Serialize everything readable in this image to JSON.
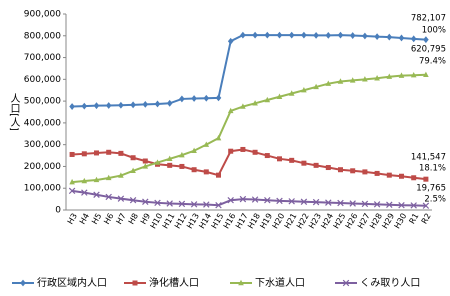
{
  "chart_data": {
    "type": "line",
    "y_label": "人口[人]",
    "categories": [
      "H3",
      "H4",
      "H5",
      "H6",
      "H7",
      "H8",
      "H9",
      "H10",
      "H11",
      "H12",
      "H13",
      "H14",
      "H15",
      "H16",
      "H17",
      "H18",
      "H19",
      "H20",
      "H21",
      "H22",
      "H23",
      "H24",
      "H25",
      "H26",
      "H27",
      "H28",
      "H29",
      "H30",
      "R1",
      "R2"
    ],
    "ylim": [
      0,
      900000
    ],
    "yticks": [
      0,
      {
        "value": 100000,
        "label": "100,000"
      },
      {
        "value": 200000,
        "label": "200,000"
      },
      {
        "value": 300000,
        "label": "300,000"
      },
      {
        "value": 400000,
        "label": "400,000"
      },
      {
        "value": 500000,
        "label": "500,000"
      },
      {
        "value": 600000,
        "label": "600,000"
      },
      {
        "value": 700000,
        "label": "700,000"
      },
      {
        "value": 800000,
        "label": "800,000"
      },
      {
        "value": 900000,
        "label": "900,000"
      }
    ],
    "legend": "bottom",
    "series": [
      {
        "name": "行政区域内人口",
        "color": "#4a7ebb",
        "marker": "diamond",
        "values": [
          475000,
          477000,
          479000,
          480000,
          481000,
          483000,
          485000,
          487000,
          490000,
          510000,
          512000,
          513000,
          515000,
          775000,
          803000,
          803000,
          803000,
          803000,
          803000,
          803000,
          802000,
          802000,
          803000,
          801000,
          799000,
          796000,
          794000,
          790000,
          786000,
          782107
        ],
        "end_label": [
          "782,107",
          "100%"
        ]
      },
      {
        "name": "浄化槽人口",
        "color": "#be4b48",
        "marker": "square",
        "values": [
          255000,
          258000,
          262000,
          265000,
          260000,
          240000,
          225000,
          210000,
          205000,
          200000,
          185000,
          175000,
          160000,
          270000,
          278000,
          265000,
          250000,
          235000,
          228000,
          215000,
          205000,
          195000,
          185000,
          180000,
          175000,
          168000,
          160000,
          155000,
          148000,
          141547
        ],
        "end_label": [
          "141,547",
          "18.1%"
        ]
      },
      {
        "name": "下水道人口",
        "color": "#98b954",
        "marker": "triangle",
        "values": [
          128000,
          133000,
          138000,
          147000,
          158000,
          180000,
          200000,
          218000,
          235000,
          252000,
          272000,
          300000,
          330000,
          455000,
          475000,
          490000,
          505000,
          520000,
          535000,
          550000,
          565000,
          580000,
          590000,
          595000,
          600000,
          605000,
          612000,
          617000,
          619000,
          620795
        ],
        "end_label": [
          "620,795",
          "79.4%"
        ]
      },
      {
        "name": "くみ取り人口",
        "color": "#7d60a0",
        "marker": "x",
        "values": [
          88000,
          80000,
          70000,
          60000,
          52000,
          45000,
          38000,
          33000,
          30000,
          28000,
          26000,
          25000,
          22000,
          45000,
          50000,
          48000,
          45000,
          42000,
          40000,
          38000,
          36000,
          34000,
          32000,
          30000,
          28000,
          26000,
          24000,
          22000,
          21000,
          19765
        ],
        "end_label": [
          "19,765",
          "2.5%"
        ]
      }
    ]
  }
}
